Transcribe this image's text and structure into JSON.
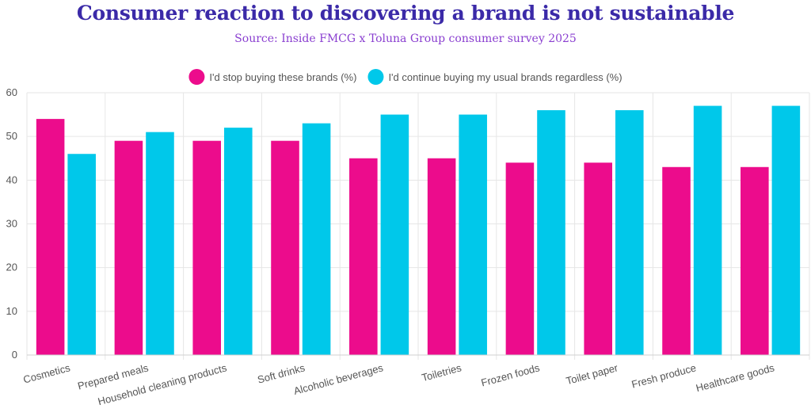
{
  "chart_data": {
    "type": "bar",
    "title": "Consumer reaction to discovering a brand is not sustainable",
    "subtitle": "Source: Inside FMCG x Toluna Group consumer survey 2025",
    "categories": [
      "Cosmetics",
      "Prepared meals",
      "Household cleaning products",
      "Soft drinks",
      "Alcoholic beverages",
      "Toiletries",
      "Frozen foods",
      "Toilet paper",
      "Fresh produce",
      "Healthcare goods"
    ],
    "series": [
      {
        "name": "I'd stop buying these brands (%)",
        "color": "#ec0c8c",
        "values": [
          54,
          49,
          49,
          49,
          45,
          45,
          44,
          44,
          43,
          43
        ]
      },
      {
        "name": "I'd continue buying my usual brands regardless (%)",
        "color": "#00c8ea",
        "values": [
          46,
          51,
          52,
          53,
          55,
          55,
          56,
          56,
          57,
          57
        ]
      }
    ],
    "ylim": [
      0,
      60
    ],
    "yticks": [
      0,
      10,
      20,
      30,
      40,
      50,
      60
    ],
    "xlabel": "",
    "ylabel": "",
    "legend": "top-center",
    "grid": true
  }
}
